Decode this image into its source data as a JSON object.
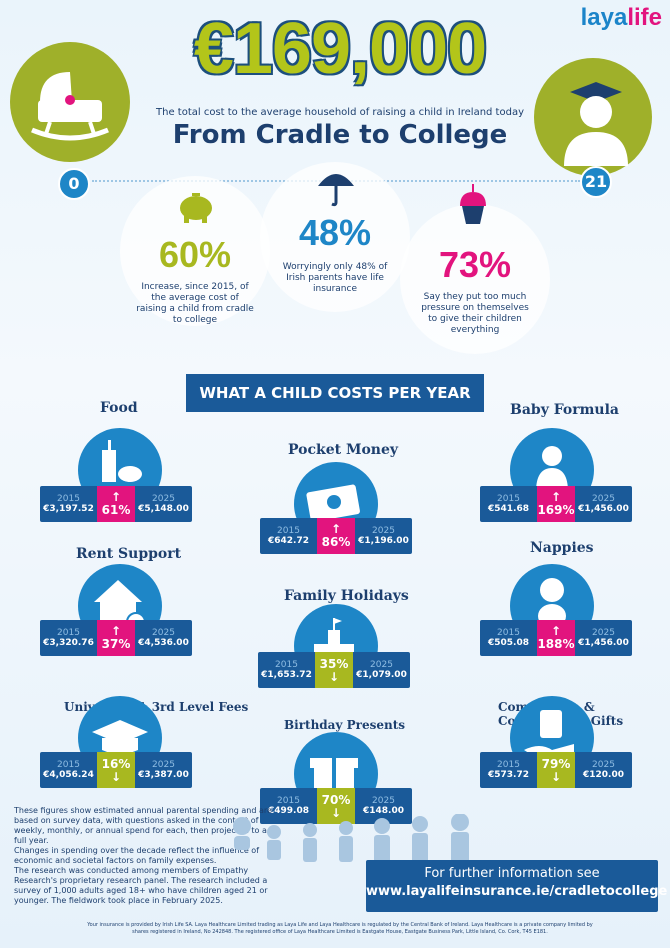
{
  "logo": {
    "part1": "laya",
    "part2": "life"
  },
  "hero": {
    "amount": "€169,000",
    "subtitle": "The total cost to the average household of raising a child in Ireland today",
    "tagline": "From Cradle to College",
    "age_start": "0",
    "age_end": "21"
  },
  "stats": [
    {
      "value": "60%",
      "text": "Increase, since 2015, of the average cost of raising a child from cradle to college",
      "color": "#a8b820",
      "icon": "piggy-bank-icon"
    },
    {
      "value": "48%",
      "text": "Worryingly only 48% of Irish parents have life insurance",
      "color": "#1e86c7",
      "icon": "umbrella-icon"
    },
    {
      "value": "73%",
      "text": "Say they put too much pressure on themselves to give their children everything",
      "color": "#e2147e",
      "icon": "cupcake-icon"
    }
  ],
  "banner": "WHAT A CHILD COSTS PER YEAR",
  "categories": [
    {
      "label": "Food",
      "y2015": "2015",
      "v2015": "€3,197.52",
      "change": "61%",
      "dir": "up",
      "y2025": "2025",
      "v2025": "€5,148.00",
      "icon": "food-icon"
    },
    {
      "label": "Pocket Money",
      "y2015": "2015",
      "v2015": "€642.72",
      "change": "86%",
      "dir": "up",
      "y2025": "2025",
      "v2025": "€1,196.00",
      "icon": "cash-icon"
    },
    {
      "label": "Baby Formula",
      "y2015": "2015",
      "v2015": "€541.68",
      "change": "169%",
      "dir": "up",
      "y2025": "2025",
      "v2025": "€1,456.00",
      "icon": "baby-bottle-icon"
    },
    {
      "label": "Rent Support",
      "y2015": "2015",
      "v2015": "€3,320.76",
      "change": "37%",
      "dir": "up",
      "y2025": "2025",
      "v2025": "€4,536.00",
      "icon": "house-icon"
    },
    {
      "label": "Family Holidays",
      "y2015": "2015",
      "v2015": "€1,653.72",
      "change": "35%",
      "dir": "down",
      "y2025": "2025",
      "v2025": "€1,079.00",
      "icon": "sandcastle-icon"
    },
    {
      "label": "Nappies",
      "y2015": "2015",
      "v2015": "€505.08",
      "change": "188%",
      "dir": "up",
      "y2025": "2025",
      "v2025": "€1,456.00",
      "icon": "baby-icon"
    },
    {
      "label": "University & 3rd Level Fees",
      "y2015": "2015",
      "v2015": "€4,056.24",
      "change": "16%",
      "dir": "down",
      "y2025": "2025",
      "v2025": "€3,387.00",
      "icon": "graduation-cap-icon"
    },
    {
      "label": "Birthday Presents",
      "y2015": "2015",
      "v2015": "€499.08",
      "change": "70%",
      "dir": "down",
      "y2025": "2025",
      "v2025": "€148.00",
      "icon": "gift-icon"
    },
    {
      "label": "Communion & Confirmation Gifts",
      "y2015": "2015",
      "v2015": "€573.72",
      "change": "79%",
      "dir": "down",
      "y2025": "2025",
      "v2025": "€120.00",
      "icon": "money-hand-icon"
    }
  ],
  "notes": [
    "These figures show estimated annual parental spending and are based on survey data, with questions asked in the context of weekly, monthly, or annual spend for each, then projected to a full year.",
    "Changes in spending over the decade reflect the influence of economic and societal factors on family expenses.",
    "The research was conducted among members of Empathy Research's proprietary research panel. The research included a survey of 1,000 adults aged 18+ who have children aged 21 or younger. The fieldwork took place in February 2025."
  ],
  "info": {
    "line1": "For further information see",
    "line2": "www.layalifeinsurance.ie/cradletocollege"
  },
  "legal": "Your insurance is provided by Irish Life SA. Laya Healthcare Limited trading as Laya Life and Laya Healthcare is regulated by the Central Bank of Ireland. Laya Healthcare is a private company limited by shares registered in Ireland, No 242848. The registered office of Laya Healthcare Limited is Eastgate House, Eastgate Business Park, Little Island, Co. Cork, T45 E181.",
  "colors": {
    "navy": "#1a5a99",
    "blue": "#1e86c7",
    "pink": "#e2147e",
    "green": "#a8b820"
  }
}
